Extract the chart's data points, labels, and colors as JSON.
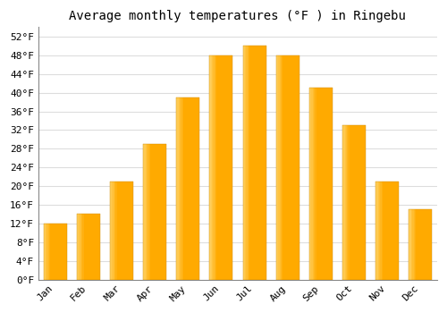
{
  "title": "Average monthly temperatures (°F ) in Ringebu",
  "months": [
    "Jan",
    "Feb",
    "Mar",
    "Apr",
    "May",
    "Jun",
    "Jul",
    "Aug",
    "Sep",
    "Oct",
    "Nov",
    "Dec"
  ],
  "values": [
    12,
    14,
    21,
    29,
    39,
    48,
    50,
    48,
    41,
    33,
    21,
    15
  ],
  "bar_color": "#FFAA00",
  "bar_color_light": "#FFD060",
  "background_color": "#FFFFFF",
  "grid_color": "#DDDDDD",
  "ylim": [
    0,
    54
  ],
  "yticks": [
    0,
    4,
    8,
    12,
    16,
    20,
    24,
    28,
    32,
    36,
    40,
    44,
    48,
    52
  ],
  "title_fontsize": 10,
  "tick_fontsize": 8,
  "font_family": "monospace"
}
